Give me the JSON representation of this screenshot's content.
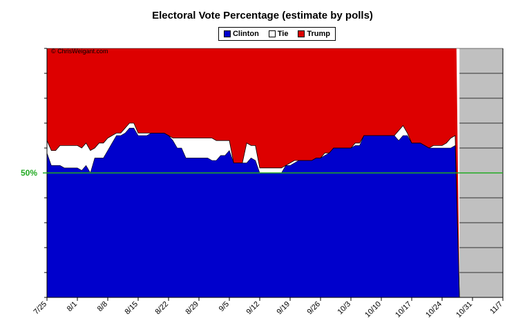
{
  "chart_data": {
    "type": "area",
    "title": "Electoral Vote Percentage (estimate by polls)",
    "legend": [
      {
        "name": "Clinton",
        "color": "#0000cc"
      },
      {
        "name": "Tie",
        "color": "#ffffff"
      },
      {
        "name": "Trump",
        "color": "#dd0000"
      }
    ],
    "legend_position": "top-center",
    "annotation": "© ChrisWeigant.com",
    "reference_line": {
      "label": "50%",
      "value": 50,
      "color": "#22aa22"
    },
    "x_ticks": [
      "7/25",
      "8/1",
      "8/8",
      "8/15",
      "8/22",
      "8/29",
      "9/5",
      "9/12",
      "9/19",
      "9/26",
      "10/3",
      "10/10",
      "10/17",
      "10/24",
      "10/31",
      "11/7"
    ],
    "ylim": [
      0,
      100
    ],
    "grid": "horizontal",
    "future_color": "#c0c0c0",
    "series": [
      {
        "name": "Clinton",
        "points": [
          [
            0,
            58
          ],
          [
            1,
            53
          ],
          [
            3,
            53
          ],
          [
            4,
            52
          ],
          [
            7,
            52
          ],
          [
            8,
            51
          ],
          [
            9,
            53
          ],
          [
            10,
            50
          ],
          [
            11,
            56
          ],
          [
            13,
            56
          ],
          [
            14,
            59
          ],
          [
            15,
            62
          ],
          [
            16,
            65
          ],
          [
            17,
            65
          ],
          [
            18,
            66
          ],
          [
            19,
            68
          ],
          [
            20,
            68
          ],
          [
            21,
            65
          ],
          [
            23,
            65
          ],
          [
            24,
            66
          ],
          [
            27,
            66
          ],
          [
            28,
            65
          ],
          [
            29,
            63
          ],
          [
            30,
            60
          ],
          [
            31,
            60
          ],
          [
            32,
            56
          ],
          [
            33,
            56
          ],
          [
            34,
            56
          ],
          [
            36,
            56
          ],
          [
            37,
            56
          ],
          [
            38,
            55
          ],
          [
            39,
            55
          ],
          [
            40,
            57
          ],
          [
            41,
            57
          ],
          [
            42,
            59
          ],
          [
            43,
            54
          ],
          [
            45,
            54
          ],
          [
            46,
            54
          ],
          [
            47,
            56
          ],
          [
            48,
            55
          ],
          [
            49,
            50
          ],
          [
            50,
            50
          ],
          [
            51,
            50
          ],
          [
            54,
            50
          ],
          [
            55,
            53
          ],
          [
            56,
            53
          ],
          [
            57,
            54
          ],
          [
            58,
            55
          ],
          [
            61,
            55
          ],
          [
            62,
            56
          ],
          [
            63,
            56
          ],
          [
            64,
            57
          ],
          [
            65,
            58
          ],
          [
            66,
            60
          ],
          [
            70,
            60
          ],
          [
            71,
            61
          ],
          [
            72,
            61
          ],
          [
            73,
            65
          ],
          [
            75,
            65
          ],
          [
            80,
            65
          ],
          [
            81,
            63
          ],
          [
            82,
            65
          ],
          [
            83,
            65
          ],
          [
            84,
            62
          ],
          [
            86,
            62
          ],
          [
            87,
            61
          ],
          [
            88,
            60
          ],
          [
            89,
            60
          ],
          [
            91,
            60
          ],
          [
            92,
            60
          ],
          [
            93,
            60
          ],
          [
            94,
            61
          ],
          [
            95,
            0
          ]
        ]
      },
      {
        "name": "Tie",
        "points": [
          [
            0,
            63
          ],
          [
            1,
            59
          ],
          [
            2,
            59
          ],
          [
            3,
            61
          ],
          [
            4,
            61
          ],
          [
            7,
            61
          ],
          [
            8,
            60
          ],
          [
            9,
            62
          ],
          [
            10,
            59
          ],
          [
            11,
            60
          ],
          [
            12,
            62
          ],
          [
            13,
            62
          ],
          [
            14,
            64
          ],
          [
            15,
            65
          ],
          [
            16,
            66
          ],
          [
            17,
            66
          ],
          [
            18,
            68
          ],
          [
            19,
            70
          ],
          [
            20,
            70
          ],
          [
            21,
            66
          ],
          [
            23,
            66
          ],
          [
            24,
            66
          ],
          [
            27,
            66
          ],
          [
            28,
            65
          ],
          [
            29,
            64
          ],
          [
            30,
            64
          ],
          [
            31,
            64
          ],
          [
            32,
            64
          ],
          [
            33,
            64
          ],
          [
            34,
            64
          ],
          [
            36,
            64
          ],
          [
            37,
            64
          ],
          [
            38,
            64
          ],
          [
            39,
            63
          ],
          [
            40,
            63
          ],
          [
            41,
            63
          ],
          [
            42,
            63
          ],
          [
            43,
            54
          ],
          [
            44,
            54
          ],
          [
            45,
            54
          ],
          [
            46,
            62
          ],
          [
            47,
            61
          ],
          [
            48,
            61
          ],
          [
            49,
            52
          ],
          [
            50,
            52
          ],
          [
            51,
            52
          ],
          [
            54,
            52
          ],
          [
            55,
            53
          ],
          [
            56,
            54
          ],
          [
            57,
            55
          ],
          [
            58,
            55
          ],
          [
            61,
            55
          ],
          [
            62,
            56
          ],
          [
            63,
            56
          ],
          [
            64,
            58
          ],
          [
            65,
            58
          ],
          [
            66,
            60
          ],
          [
            70,
            60
          ],
          [
            71,
            62
          ],
          [
            72,
            62
          ],
          [
            73,
            65
          ],
          [
            75,
            65
          ],
          [
            80,
            65
          ],
          [
            81,
            67
          ],
          [
            82,
            69
          ],
          [
            83,
            66
          ],
          [
            84,
            62
          ],
          [
            86,
            62
          ],
          [
            87,
            61
          ],
          [
            88,
            60
          ],
          [
            89,
            61
          ],
          [
            91,
            61
          ],
          [
            92,
            62
          ],
          [
            93,
            64
          ],
          [
            94,
            65
          ],
          [
            95,
            0
          ]
        ]
      }
    ],
    "trump_top": 100
  }
}
